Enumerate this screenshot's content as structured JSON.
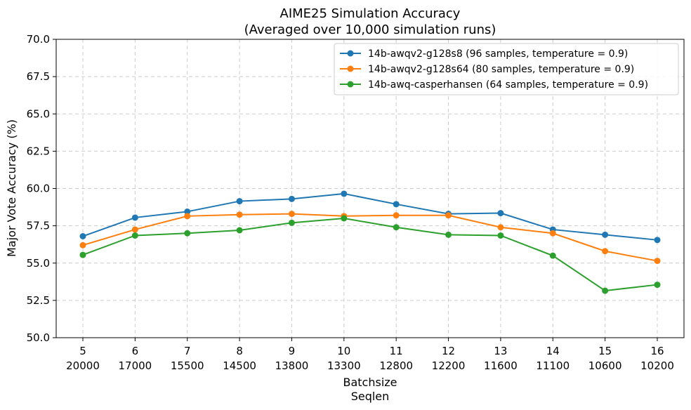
{
  "chart_data": {
    "type": "line",
    "title": "AIME25 Simulation Accuracy",
    "subtitle": "(Averaged over 10,000 simulation runs)",
    "xlabel": "Batchsize",
    "xlabel2": "Seqlen",
    "ylabel": "Major Vote Accuracy (%)",
    "ylim": [
      50,
      70
    ],
    "yticks": [
      "50.0",
      "52.5",
      "55.0",
      "57.5",
      "60.0",
      "62.5",
      "65.0",
      "67.5",
      "70.0"
    ],
    "categories": [
      "5",
      "6",
      "7",
      "8",
      "9",
      "10",
      "11",
      "12",
      "13",
      "14",
      "15",
      "16"
    ],
    "categories2": [
      "20000",
      "17000",
      "15500",
      "14500",
      "13800",
      "13300",
      "12800",
      "12200",
      "11600",
      "11100",
      "10600",
      "10200"
    ],
    "grid": true,
    "legend_position": "top-right",
    "series": [
      {
        "name": "14b-awqv2-g128s8 (96 samples, temperature = 0.9)",
        "color": "#1f77b4",
        "values": [
          56.8,
          58.05,
          58.45,
          59.15,
          59.3,
          59.65,
          58.95,
          58.3,
          58.35,
          57.25,
          56.9,
          56.55
        ]
      },
      {
        "name": "14b-awqv2-g128s64 (80 samples, temperature = 0.9)",
        "color": "#ff7f0e",
        "values": [
          56.2,
          57.25,
          58.15,
          58.25,
          58.3,
          58.15,
          58.2,
          58.2,
          57.4,
          57.0,
          55.8,
          55.15
        ]
      },
      {
        "name": "14b-awq-casperhansen (64 samples, temperature = 0.9)",
        "color": "#2ca02c",
        "values": [
          55.55,
          56.85,
          57.0,
          57.2,
          57.7,
          58.0,
          57.4,
          56.9,
          56.85,
          55.5,
          53.15,
          53.55
        ]
      }
    ]
  }
}
